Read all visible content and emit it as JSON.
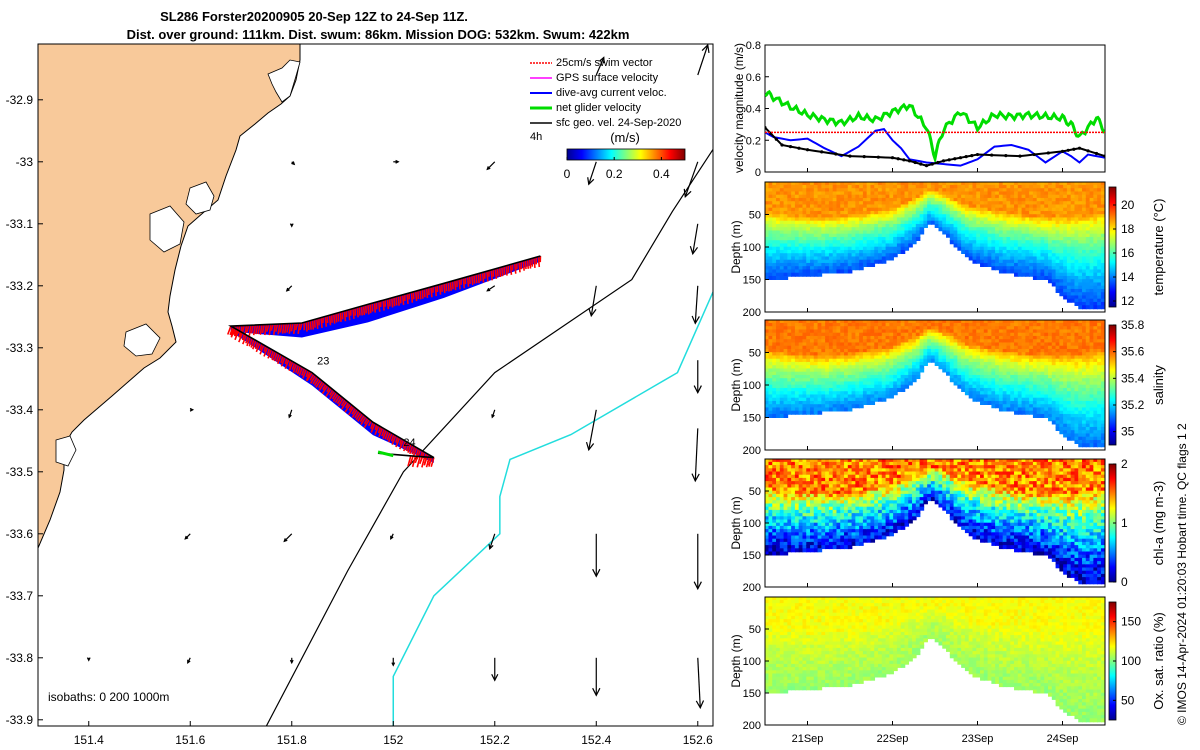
{
  "title": {
    "line1": "SL286 Forster20200905 20-Sep 12Z to 24-Sep 11Z.",
    "line2": "Dist. over ground: 111km. Dist. swum: 86km. Mission DOG: 532km. Swum: 422km"
  },
  "colors": {
    "land": "#f8c99a",
    "swim_vector": "#ff0000",
    "gps": "#ff00ff",
    "dive_avg": "#0000ff",
    "net_glider": "#00dd00",
    "sfc_geo": "#000000",
    "isobath_200": "#22dddd",
    "isobath_1000": "#000000",
    "mark_threshold": "#ff0000"
  },
  "chart_data": [
    {
      "id": "map",
      "type": "map",
      "xlim": [
        151.3,
        152.63
      ],
      "ylim": [
        -33.91,
        -32.81
      ],
      "x_ticks": [
        "151.4",
        "151.6",
        "151.8",
        "152",
        "152.2",
        "152.4",
        "152.6"
      ],
      "x_tick_values": [
        151.4,
        151.6,
        151.8,
        152.0,
        152.2,
        152.4,
        152.6
      ],
      "y_ticks": [
        "-32.9",
        "-33",
        "-33.1",
        "-33.2",
        "-33.3",
        "-33.4",
        "-33.5",
        "-33.6",
        "-33.7",
        "-33.8",
        "-33.9"
      ],
      "y_tick_values": [
        -32.9,
        -33.0,
        -33.1,
        -33.2,
        -33.3,
        -33.4,
        -33.5,
        -33.6,
        -33.7,
        -33.8,
        -33.9
      ],
      "legend": [
        {
          "label": "25cm/s swim vector",
          "color": "#ff0000"
        },
        {
          "label": "GPS surface velocity",
          "color": "#ff00ff"
        },
        {
          "label": "dive-avg current veloc.",
          "color": "#0000ff"
        },
        {
          "label": "net glider velocity",
          "color": "#00dd00"
        },
        {
          "label": "sfc geo. vel. 24-Sep-2020",
          "color": "#000000"
        }
      ],
      "legend_placement": "top-right",
      "colorbar": {
        "label": "(m/s)",
        "ticks": [
          "0",
          "0.2",
          "0.4"
        ],
        "range": [
          0,
          0.5
        ]
      },
      "time_note": "4h",
      "isobath_note": "isobaths: 0   200  1000m",
      "glider_track": [
        {
          "lon": 152.29,
          "lat": -33.152
        },
        {
          "lon": 152.1,
          "lat": -33.196
        },
        {
          "lon": 151.95,
          "lat": -33.23
        },
        {
          "lon": 151.82,
          "lat": -33.26
        },
        {
          "lon": 151.68,
          "lat": -33.265
        },
        {
          "lon": 151.84,
          "lat": -33.34
        },
        {
          "lon": 151.96,
          "lat": -33.42
        },
        {
          "lon": 152.08,
          "lat": -33.477
        },
        {
          "lon": 152.03,
          "lat": -33.474
        },
        {
          "lon": 151.97,
          "lat": -33.47
        }
      ],
      "day_labels": [
        {
          "text": "23",
          "lon": 151.85,
          "lat": -33.327
        },
        {
          "text": "24",
          "lon": 152.02,
          "lat": -33.458
        }
      ],
      "isobath_200": [
        {
          "lon": 152.63,
          "lat": -33.21
        },
        {
          "lon": 152.56,
          "lat": -33.34
        },
        {
          "lon": 152.35,
          "lat": -33.44
        },
        {
          "lon": 152.23,
          "lat": -33.48
        },
        {
          "lon": 152.21,
          "lat": -33.54
        },
        {
          "lon": 152.21,
          "lat": -33.6
        },
        {
          "lon": 152.08,
          "lat": -33.7
        },
        {
          "lon": 152.0,
          "lat": -33.83
        },
        {
          "lon": 152.0,
          "lat": -33.91
        }
      ],
      "isobath_1000": [
        {
          "lon": 152.63,
          "lat": -32.98
        },
        {
          "lon": 152.55,
          "lat": -33.08
        },
        {
          "lon": 152.47,
          "lat": -33.19
        },
        {
          "lon": 152.2,
          "lat": -33.34
        },
        {
          "lon": 152.02,
          "lat": -33.5
        },
        {
          "lon": 151.91,
          "lat": -33.66
        },
        {
          "lon": 151.75,
          "lat": -33.91
        }
      ],
      "geo_vectors": [
        {
          "lon": 151.8,
          "lat": -33.0,
          "u": 0.01,
          "v": -0.01
        },
        {
          "lon": 152.0,
          "lat": -33.0,
          "u": 0.02,
          "v": 0.0
        },
        {
          "lon": 152.2,
          "lat": -33.0,
          "u": -0.03,
          "v": -0.03
        },
        {
          "lon": 152.4,
          "lat": -33.0,
          "u": -0.03,
          "v": -0.09
        },
        {
          "lon": 152.6,
          "lat": -33.0,
          "u": -0.05,
          "v": -0.14
        },
        {
          "lon": 152.4,
          "lat": -32.86,
          "u": 0.03,
          "v": 0.07
        },
        {
          "lon": 152.6,
          "lat": -32.86,
          "u": 0.04,
          "v": 0.12
        },
        {
          "lon": 151.8,
          "lat": -33.1,
          "u": 0.0,
          "v": -0.01
        },
        {
          "lon": 152.6,
          "lat": -33.1,
          "u": -0.02,
          "v": -0.12
        },
        {
          "lon": 151.8,
          "lat": -33.2,
          "u": -0.02,
          "v": -0.02
        },
        {
          "lon": 152.2,
          "lat": -33.2,
          "u": -0.03,
          "v": -0.02
        },
        {
          "lon": 152.4,
          "lat": -33.2,
          "u": -0.02,
          "v": -0.12
        },
        {
          "lon": 152.6,
          "lat": -33.2,
          "u": -0.01,
          "v": -0.15
        },
        {
          "lon": 152.6,
          "lat": -33.32,
          "u": 0.0,
          "v": -0.13
        },
        {
          "lon": 151.6,
          "lat": -33.4,
          "u": 0.01,
          "v": 0.0
        },
        {
          "lon": 151.8,
          "lat": -33.4,
          "u": -0.01,
          "v": -0.03
        },
        {
          "lon": 152.2,
          "lat": -33.4,
          "u": -0.01,
          "v": -0.03
        },
        {
          "lon": 152.4,
          "lat": -33.4,
          "u": -0.03,
          "v": -0.16
        },
        {
          "lon": 152.6,
          "lat": -33.43,
          "u": -0.01,
          "v": -0.21
        },
        {
          "lon": 151.6,
          "lat": -33.6,
          "u": -0.02,
          "v": -0.02
        },
        {
          "lon": 151.8,
          "lat": -33.6,
          "u": -0.03,
          "v": -0.03
        },
        {
          "lon": 152.0,
          "lat": -33.6,
          "u": -0.01,
          "v": -0.02
        },
        {
          "lon": 152.2,
          "lat": -33.6,
          "u": -0.02,
          "v": -0.06
        },
        {
          "lon": 152.4,
          "lat": -33.6,
          "u": 0.0,
          "v": -0.17
        },
        {
          "lon": 152.6,
          "lat": -33.6,
          "u": 0.0,
          "v": -0.22
        },
        {
          "lon": 151.4,
          "lat": -33.8,
          "u": 0.0,
          "v": -0.01
        },
        {
          "lon": 151.6,
          "lat": -33.8,
          "u": -0.01,
          "v": -0.02
        },
        {
          "lon": 151.8,
          "lat": -33.8,
          "u": 0.0,
          "v": -0.02
        },
        {
          "lon": 152.0,
          "lat": -33.8,
          "u": 0.0,
          "v": -0.03
        },
        {
          "lon": 152.2,
          "lat": -33.8,
          "u": 0.0,
          "v": -0.09
        },
        {
          "lon": 152.4,
          "lat": -33.8,
          "u": 0.0,
          "v": -0.15
        },
        {
          "lon": 152.6,
          "lat": -33.8,
          "u": 0.01,
          "v": -0.2
        }
      ]
    },
    {
      "id": "velocity",
      "type": "line",
      "ylabel": "velocity magnitude (m/s)",
      "ylim": [
        0,
        0.8
      ],
      "y_ticks": [
        "0",
        "0.2",
        "0.4",
        "0.6",
        "0.8"
      ],
      "y_tick_values": [
        0,
        0.2,
        0.4,
        0.6,
        0.8
      ],
      "xlim": [
        20.5,
        24.5
      ],
      "series": [
        {
          "name": "net glider velocity",
          "color": "#00dd00",
          "x": [
            20.5,
            20.6,
            20.8,
            21.0,
            21.2,
            21.4,
            21.6,
            21.8,
            22.0,
            22.2,
            22.4,
            22.5,
            22.6,
            22.8,
            23.0,
            23.2,
            23.4,
            23.6,
            23.8,
            24.0,
            24.1,
            24.2,
            24.4,
            24.5
          ],
          "y": [
            0.5,
            0.47,
            0.41,
            0.36,
            0.33,
            0.31,
            0.35,
            0.33,
            0.38,
            0.42,
            0.28,
            0.1,
            0.27,
            0.38,
            0.28,
            0.36,
            0.35,
            0.36,
            0.35,
            0.34,
            0.3,
            0.22,
            0.34,
            0.26
          ]
        },
        {
          "name": "dive-avg current veloc.",
          "color": "#0000ff",
          "x": [
            20.5,
            20.6,
            20.8,
            21.0,
            21.2,
            21.4,
            21.6,
            21.8,
            21.9,
            22.0,
            22.1,
            22.2,
            22.4,
            22.6,
            22.8,
            23.0,
            23.2,
            23.4,
            23.6,
            23.8,
            24.0,
            24.1,
            24.2,
            24.3,
            24.5
          ],
          "y": [
            0.25,
            0.22,
            0.2,
            0.21,
            0.15,
            0.1,
            0.16,
            0.26,
            0.27,
            0.2,
            0.15,
            0.08,
            0.06,
            0.05,
            0.04,
            0.08,
            0.16,
            0.17,
            0.14,
            0.06,
            0.13,
            0.1,
            0.06,
            0.11,
            0.09
          ]
        },
        {
          "name": "sfc geo. vel.",
          "color": "#000000",
          "x": [
            20.5,
            20.7,
            21.0,
            21.5,
            22.0,
            22.2,
            22.4,
            22.6,
            22.8,
            23.0,
            23.5,
            24.0,
            24.2,
            24.5
          ],
          "y": [
            0.28,
            0.17,
            0.14,
            0.1,
            0.09,
            0.07,
            0.04,
            0.07,
            0.09,
            0.11,
            0.1,
            0.13,
            0.15,
            0.1
          ]
        },
        {
          "name": "25cm/s swim vector",
          "color": "#ff0000",
          "x": [
            20.5,
            24.5
          ],
          "y": [
            0.25,
            0.25
          ]
        }
      ]
    },
    {
      "id": "temperature",
      "type": "heatmap",
      "ylabel": "Depth (m)",
      "colorbar_label": "temperature (°C)",
      "colorbar_ticks": [
        "12",
        "14",
        "16",
        "18",
        "20"
      ],
      "colorbar_tick_values": [
        12,
        14,
        16,
        18,
        20
      ],
      "colorbar_range": [
        11.5,
        21.5
      ],
      "y_ticks": [
        "50",
        "100",
        "150",
        "200"
      ],
      "y_tick_values": [
        50,
        100,
        150,
        200
      ],
      "ylim": [
        0,
        200
      ],
      "surface_value": 18.8,
      "bottom_value": 13.0
    },
    {
      "id": "salinity",
      "type": "heatmap",
      "ylabel": "Depth (m)",
      "colorbar_label": "salinity",
      "colorbar_ticks": [
        "35",
        "35.2",
        "35.4",
        "35.6",
        "35.8"
      ],
      "colorbar_tick_values": [
        35.0,
        35.2,
        35.4,
        35.6,
        35.8
      ],
      "colorbar_range": [
        34.9,
        35.8
      ],
      "y_ticks": [
        "50",
        "100",
        "150",
        "200"
      ],
      "y_tick_values": [
        50,
        100,
        150,
        200
      ],
      "ylim": [
        0,
        200
      ],
      "surface_value": 35.58,
      "bottom_value": 35.08
    },
    {
      "id": "chla",
      "type": "heatmap",
      "ylabel": "Depth (m)",
      "colorbar_label": "chl-a (mg m-3)",
      "colorbar_ticks": [
        "0",
        "1",
        "2"
      ],
      "colorbar_tick_values": [
        0,
        1,
        2
      ],
      "colorbar_range": [
        0,
        2
      ],
      "y_ticks": [
        "50",
        "100",
        "150",
        "200"
      ],
      "y_tick_values": [
        50,
        100,
        150,
        200
      ],
      "ylim": [
        0,
        200
      ],
      "surface_value": 1.5,
      "bottom_value": 0.05
    },
    {
      "id": "oxygen",
      "type": "heatmap",
      "ylabel": "Depth (m)",
      "colorbar_label": "Ox. sat. ratio (%)",
      "colorbar_ticks": [
        "50",
        "100",
        "150"
      ],
      "colorbar_tick_values": [
        50,
        100,
        150
      ],
      "colorbar_range": [
        25,
        175
      ],
      "y_ticks": [
        "50",
        "100",
        "150",
        "200"
      ],
      "y_tick_values": [
        50,
        100,
        150,
        200
      ],
      "ylim": [
        0,
        200
      ],
      "surface_value": 118,
      "bottom_value": 102
    }
  ],
  "time_axis": {
    "ticks": [
      "21Sep",
      "22Sep",
      "23Sep",
      "24Sep"
    ],
    "tick_values": [
      21,
      22,
      23,
      24
    ],
    "xlim": [
      20.5,
      24.5
    ],
    "bottom_depth": [
      {
        "t": 20.5,
        "d": 150
      },
      {
        "t": 21.0,
        "d": 145
      },
      {
        "t": 21.5,
        "d": 138
      },
      {
        "t": 22.0,
        "d": 120
      },
      {
        "t": 22.3,
        "d": 90
      },
      {
        "t": 22.45,
        "d": 60
      },
      {
        "t": 22.6,
        "d": 80
      },
      {
        "t": 22.9,
        "d": 120
      },
      {
        "t": 23.3,
        "d": 140
      },
      {
        "t": 23.8,
        "d": 150
      },
      {
        "t": 24.0,
        "d": 175
      },
      {
        "t": 24.2,
        "d": 195
      },
      {
        "t": 24.5,
        "d": 195
      }
    ]
  },
  "credit": "© IMOS 14-Apr-2024 01:20:03 Hobart time. QC flags 1  2"
}
